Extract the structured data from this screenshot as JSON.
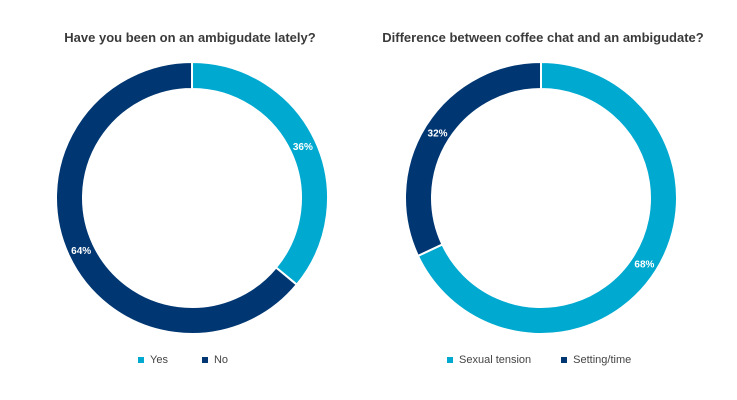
{
  "chart_data": [
    {
      "type": "pie",
      "title": "Have you been on an ambigudate lately?",
      "categories": [
        "Yes",
        "No"
      ],
      "values": [
        36,
        64
      ],
      "labels": [
        "36%",
        "64%"
      ],
      "colors": [
        "#00a9d0",
        "#003773"
      ],
      "donut": true,
      "legend": "bottom"
    },
    {
      "type": "pie",
      "title": "Difference between coffee chat and an ambigudate?",
      "categories": [
        "Sexual tension",
        "Setting/time"
      ],
      "values": [
        68,
        32
      ],
      "labels": [
        "68%",
        "32%"
      ],
      "colors": [
        "#00a9d0",
        "#003773"
      ],
      "donut": true,
      "legend": "bottom"
    }
  ]
}
